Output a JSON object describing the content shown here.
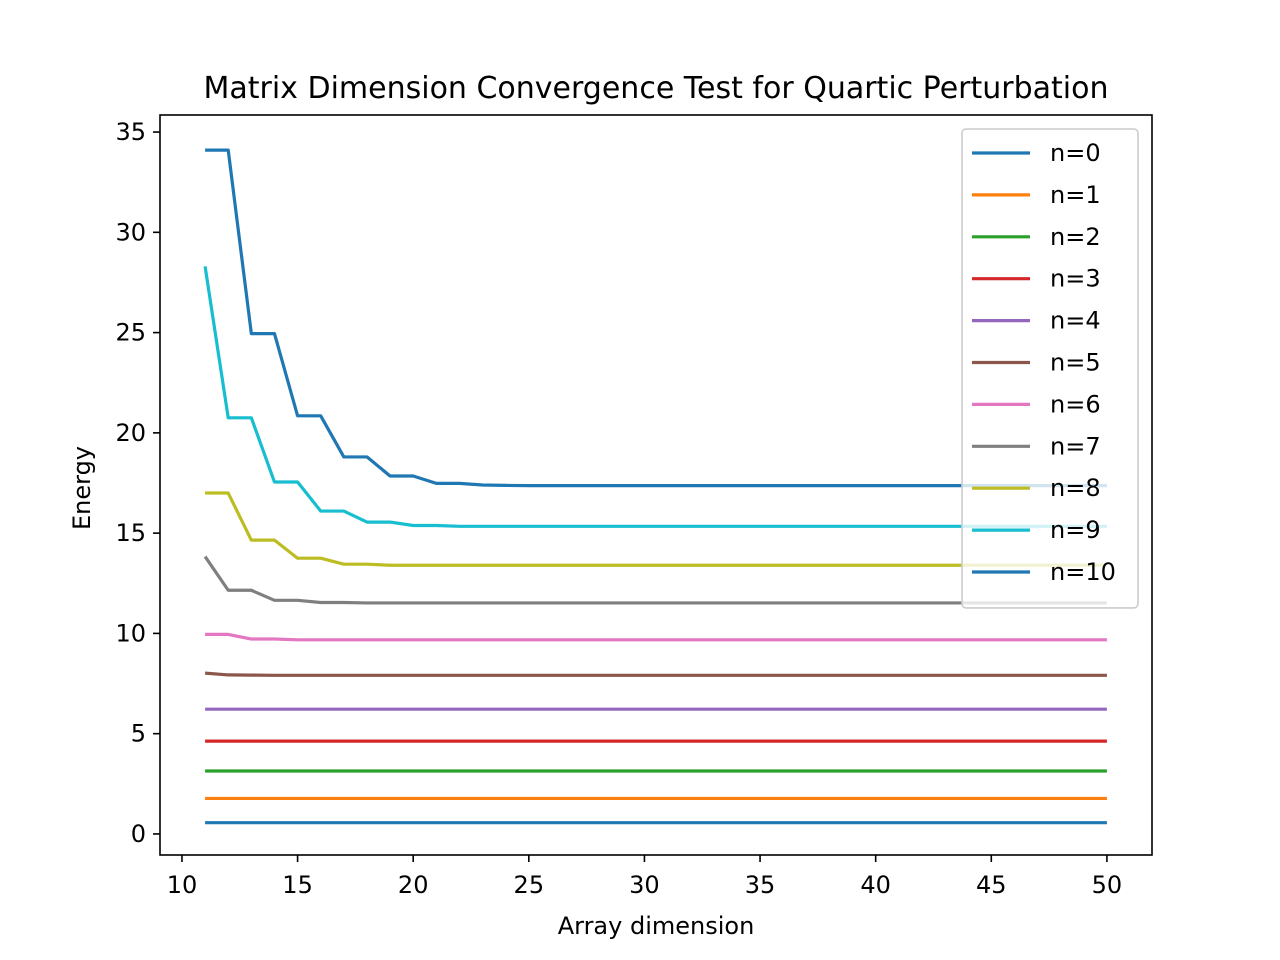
{
  "chart_data": {
    "type": "line",
    "title": "Matrix Dimension Convergence Test for Quartic Perturbation",
    "xlabel": "Array dimension",
    "ylabel": "Energy",
    "xlim": [
      9.05,
      51.95
    ],
    "ylim": [
      -1.05,
      35.85
    ],
    "xticks": [
      10,
      15,
      20,
      25,
      30,
      35,
      40,
      45,
      50
    ],
    "yticks": [
      0,
      5,
      10,
      15,
      20,
      25,
      30,
      35
    ],
    "grid": false,
    "legend_position": "upper-right",
    "x": [
      11,
      12,
      13,
      14,
      15,
      16,
      17,
      18,
      19,
      20,
      21,
      22,
      23,
      24,
      25,
      26,
      27,
      28,
      29,
      30,
      31,
      32,
      33,
      34,
      35,
      36,
      37,
      38,
      39,
      40,
      41,
      42,
      43,
      44,
      45,
      46,
      47,
      48,
      49,
      50
    ],
    "series": [
      {
        "name": "n=0",
        "color": "#1f77b4",
        "values": [
          0.56,
          0.56,
          0.56,
          0.56,
          0.56,
          0.56,
          0.56,
          0.56,
          0.56,
          0.56,
          0.56,
          0.56,
          0.56,
          0.56,
          0.56,
          0.56,
          0.56,
          0.56,
          0.56,
          0.56,
          0.56,
          0.56,
          0.56,
          0.56,
          0.56,
          0.56,
          0.56,
          0.56,
          0.56,
          0.56,
          0.56,
          0.56,
          0.56,
          0.56,
          0.56,
          0.56,
          0.56,
          0.56,
          0.56,
          0.56
        ]
      },
      {
        "name": "n=1",
        "color": "#ff7f0e",
        "values": [
          1.77,
          1.77,
          1.77,
          1.77,
          1.77,
          1.77,
          1.77,
          1.77,
          1.77,
          1.77,
          1.77,
          1.77,
          1.77,
          1.77,
          1.77,
          1.77,
          1.77,
          1.77,
          1.77,
          1.77,
          1.77,
          1.77,
          1.77,
          1.77,
          1.77,
          1.77,
          1.77,
          1.77,
          1.77,
          1.77,
          1.77,
          1.77,
          1.77,
          1.77,
          1.77,
          1.77,
          1.77,
          1.77,
          1.77,
          1.77
        ]
      },
      {
        "name": "n=2",
        "color": "#2ca02c",
        "values": [
          3.14,
          3.14,
          3.14,
          3.14,
          3.14,
          3.14,
          3.14,
          3.14,
          3.14,
          3.14,
          3.14,
          3.14,
          3.14,
          3.14,
          3.14,
          3.14,
          3.14,
          3.14,
          3.14,
          3.14,
          3.14,
          3.14,
          3.14,
          3.14,
          3.14,
          3.14,
          3.14,
          3.14,
          3.14,
          3.14,
          3.14,
          3.14,
          3.14,
          3.14,
          3.14,
          3.14,
          3.14,
          3.14,
          3.14,
          3.14
        ]
      },
      {
        "name": "n=3",
        "color": "#d62728",
        "values": [
          4.63,
          4.63,
          4.63,
          4.63,
          4.63,
          4.63,
          4.63,
          4.63,
          4.63,
          4.63,
          4.63,
          4.63,
          4.63,
          4.63,
          4.63,
          4.63,
          4.63,
          4.63,
          4.63,
          4.63,
          4.63,
          4.63,
          4.63,
          4.63,
          4.63,
          4.63,
          4.63,
          4.63,
          4.63,
          4.63,
          4.63,
          4.63,
          4.63,
          4.63,
          4.63,
          4.63,
          4.63,
          4.63,
          4.63,
          4.63
        ]
      },
      {
        "name": "n=4",
        "color": "#9467bd",
        "values": [
          6.22,
          6.22,
          6.22,
          6.22,
          6.22,
          6.22,
          6.22,
          6.22,
          6.22,
          6.22,
          6.22,
          6.22,
          6.22,
          6.22,
          6.22,
          6.22,
          6.22,
          6.22,
          6.22,
          6.22,
          6.22,
          6.22,
          6.22,
          6.22,
          6.22,
          6.22,
          6.22,
          6.22,
          6.22,
          6.22,
          6.22,
          6.22,
          6.22,
          6.22,
          6.22,
          6.22,
          6.22,
          6.22,
          6.22,
          6.22
        ]
      },
      {
        "name": "n=5",
        "color": "#8c564b",
        "values": [
          8.02,
          7.93,
          7.92,
          7.91,
          7.91,
          7.91,
          7.91,
          7.91,
          7.91,
          7.91,
          7.91,
          7.91,
          7.91,
          7.91,
          7.91,
          7.91,
          7.91,
          7.91,
          7.91,
          7.91,
          7.91,
          7.91,
          7.91,
          7.91,
          7.91,
          7.91,
          7.91,
          7.91,
          7.91,
          7.91,
          7.91,
          7.91,
          7.91,
          7.91,
          7.91,
          7.91,
          7.91,
          7.91,
          7.91,
          7.91
        ]
      },
      {
        "name": "n=6",
        "color": "#e377c2",
        "values": [
          9.95,
          9.95,
          9.72,
          9.72,
          9.68,
          9.68,
          9.68,
          9.68,
          9.68,
          9.68,
          9.68,
          9.68,
          9.68,
          9.68,
          9.68,
          9.68,
          9.68,
          9.68,
          9.68,
          9.68,
          9.68,
          9.68,
          9.68,
          9.68,
          9.68,
          9.68,
          9.68,
          9.68,
          9.68,
          9.68,
          9.68,
          9.68,
          9.68,
          9.68,
          9.68,
          9.68,
          9.68,
          9.68,
          9.68,
          9.68
        ]
      },
      {
        "name": "n=7",
        "color": "#7f7f7f",
        "values": [
          13.83,
          12.15,
          12.15,
          11.65,
          11.65,
          11.54,
          11.54,
          11.52,
          11.52,
          11.52,
          11.52,
          11.52,
          11.52,
          11.52,
          11.52,
          11.52,
          11.52,
          11.52,
          11.52,
          11.52,
          11.52,
          11.52,
          11.52,
          11.52,
          11.52,
          11.52,
          11.52,
          11.52,
          11.52,
          11.52,
          11.52,
          11.52,
          11.52,
          11.52,
          11.52,
          11.52,
          11.52,
          11.52,
          11.52,
          11.52
        ]
      },
      {
        "name": "n=8",
        "color": "#bcbd22",
        "values": [
          17.0,
          17.0,
          14.65,
          14.65,
          13.75,
          13.75,
          13.45,
          13.45,
          13.4,
          13.4,
          13.4,
          13.4,
          13.4,
          13.4,
          13.4,
          13.4,
          13.4,
          13.4,
          13.4,
          13.4,
          13.4,
          13.4,
          13.4,
          13.4,
          13.4,
          13.4,
          13.4,
          13.4,
          13.4,
          13.4,
          13.4,
          13.4,
          13.4,
          13.4,
          13.4,
          13.4,
          13.4,
          13.4,
          13.4,
          13.4
        ]
      },
      {
        "name": "n=9",
        "color": "#17becf",
        "values": [
          28.3,
          20.75,
          20.75,
          17.55,
          17.55,
          16.1,
          16.1,
          15.55,
          15.55,
          15.38,
          15.38,
          15.34,
          15.34,
          15.34,
          15.34,
          15.34,
          15.34,
          15.34,
          15.34,
          15.34,
          15.34,
          15.34,
          15.34,
          15.34,
          15.34,
          15.34,
          15.34,
          15.34,
          15.34,
          15.34,
          15.34,
          15.34,
          15.34,
          15.34,
          15.34,
          15.34,
          15.34,
          15.34,
          15.34,
          15.34
        ]
      },
      {
        "name": "n=10",
        "color": "#1f77b4",
        "values": [
          34.1,
          34.1,
          24.95,
          24.95,
          20.85,
          20.85,
          18.8,
          18.8,
          17.85,
          17.85,
          17.48,
          17.48,
          17.4,
          17.38,
          17.37,
          17.37,
          17.37,
          17.37,
          17.37,
          17.37,
          17.37,
          17.37,
          17.37,
          17.37,
          17.37,
          17.37,
          17.37,
          17.37,
          17.37,
          17.37,
          17.37,
          17.37,
          17.37,
          17.37,
          17.37,
          17.37,
          17.37,
          17.37,
          17.37,
          17.37
        ]
      }
    ]
  }
}
